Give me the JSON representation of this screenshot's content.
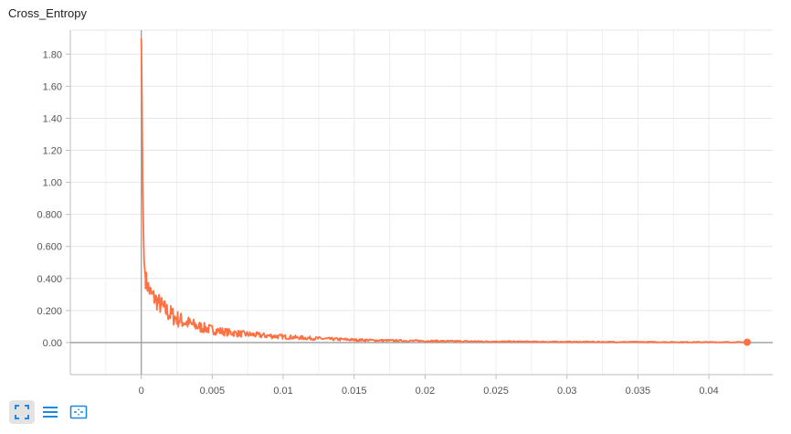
{
  "chart_data": {
    "type": "line",
    "title": "Cross_Entropy",
    "xlabel": "",
    "ylabel": "",
    "xlim": [
      -0.005,
      0.0445
    ],
    "ylim": [
      -0.2,
      1.95
    ],
    "x_ticks": [
      0,
      0.005,
      0.01,
      0.015,
      0.02,
      0.025,
      0.03,
      0.035,
      0.04
    ],
    "x_tick_labels": [
      "0",
      "0.005",
      "0.01",
      "0.015",
      "0.02",
      "0.025",
      "0.03",
      "0.035",
      "0.04"
    ],
    "y_ticks": [
      0,
      0.2,
      0.4,
      0.6,
      0.8,
      1.0,
      1.2,
      1.4,
      1.6,
      1.8
    ],
    "y_tick_labels": [
      "0.00",
      "0.200",
      "0.400",
      "0.600",
      "0.800",
      "1.00",
      "1.20",
      "1.40",
      "1.60",
      "1.80"
    ],
    "grid": true,
    "color": "#ff7043",
    "series": [
      {
        "x": [
          0,
          5e-05,
          0.0001,
          0.00015,
          0.0002,
          0.0003,
          0.0004,
          0.0005,
          0.0007,
          0.001,
          0.0013,
          0.0016,
          0.002,
          0.0025,
          0.003,
          0.0035,
          0.004,
          0.0045,
          0.005,
          0.006,
          0.007,
          0.008,
          0.009,
          0.01,
          0.011,
          0.012,
          0.013,
          0.014,
          0.015,
          0.016,
          0.017,
          0.018,
          0.019,
          0.02,
          0.022,
          0.024,
          0.026,
          0.028,
          0.03,
          0.032,
          0.034,
          0.036,
          0.038,
          0.04,
          0.042,
          0.0427
        ],
        "values": [
          1.9,
          1.5,
          1.0,
          0.7,
          0.5,
          0.4,
          0.37,
          0.34,
          0.3,
          0.27,
          0.24,
          0.21,
          0.18,
          0.15,
          0.13,
          0.115,
          0.1,
          0.09,
          0.08,
          0.065,
          0.055,
          0.048,
          0.042,
          0.036,
          0.031,
          0.027,
          0.023,
          0.02,
          0.017,
          0.015,
          0.013,
          0.012,
          0.011,
          0.01,
          0.008,
          0.007,
          0.006,
          0.005,
          0.0045,
          0.004,
          0.0035,
          0.003,
          0.0028,
          0.0025,
          0.0022,
          0.002
        ]
      }
    ]
  },
  "toolbar": {
    "buttons": [
      {
        "icon": "fullscreen-icon"
      },
      {
        "icon": "lines-icon"
      },
      {
        "icon": "fit-domain-icon"
      }
    ]
  }
}
